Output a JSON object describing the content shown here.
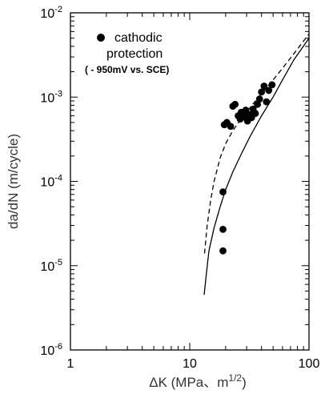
{
  "chart_data": {
    "type": "scatter",
    "title": "",
    "xlabel": "ΔK (MPa、m^1/2)",
    "ylabel": "da/dN (m/cycle)",
    "xscale": "log",
    "yscale": "log",
    "xlim": [
      1,
      100
    ],
    "ylim": [
      1e-06,
      0.01
    ],
    "grid": false,
    "legend_position": "top-left",
    "x_ticks": [
      {
        "value": 1,
        "label": "1"
      },
      {
        "value": 10,
        "label": "10"
      },
      {
        "value": 100,
        "label": "100"
      }
    ],
    "y_ticks": [
      {
        "value": 1e-06,
        "mantissa": "10",
        "exp": "-6"
      },
      {
        "value": 1e-05,
        "mantissa": "10",
        "exp": "-5"
      },
      {
        "value": 0.0001,
        "mantissa": "10",
        "exp": "-4"
      },
      {
        "value": 0.001,
        "mantissa": "10",
        "exp": "-3"
      },
      {
        "value": 0.01,
        "mantissa": "10",
        "exp": "-2"
      }
    ],
    "xlabel_parts": {
      "main": "ΔK (MPa、m",
      "sup": "1/2",
      "close": ")"
    },
    "legend": {
      "marker": "filled-circle",
      "line1": "cathodic",
      "line2": "protection",
      "line3": "( - 950mV vs. SCE)"
    },
    "scatter": {
      "name": "cathodic protection",
      "color": "#000000",
      "points": [
        [
          19.0,
          1.5e-05
        ],
        [
          19.0,
          2.7e-05
        ],
        [
          19.0,
          7.5e-05
        ],
        [
          19.5,
          0.00047
        ],
        [
          20.5,
          0.0005
        ],
        [
          22.0,
          0.00045
        ],
        [
          23.0,
          0.00078
        ],
        [
          24.0,
          0.00082
        ],
        [
          25.5,
          0.0006
        ],
        [
          26.5,
          0.00055
        ],
        [
          27.0,
          0.00066
        ],
        [
          28.5,
          0.00058
        ],
        [
          29.5,
          0.0007
        ],
        [
          30.5,
          0.00052
        ],
        [
          31.5,
          0.00062
        ],
        [
          33.0,
          0.00057
        ],
        [
          34.0,
          0.00072
        ],
        [
          35.5,
          0.00064
        ],
        [
          37.0,
          0.00082
        ],
        [
          38.5,
          0.00095
        ],
        [
          40.0,
          0.00115
        ],
        [
          42.0,
          0.00135
        ],
        [
          44.0,
          0.00088
        ],
        [
          46.0,
          0.0012
        ],
        [
          49.0,
          0.0014
        ]
      ]
    },
    "curves": [
      {
        "style": "solid",
        "color": "#000000",
        "points": [
          [
            13.2,
            4.5e-06
          ],
          [
            13.8,
            8e-06
          ],
          [
            14.5,
            1.5e-05
          ],
          [
            16,
            2.8e-05
          ],
          [
            18,
            5e-05
          ],
          [
            20,
            8e-05
          ],
          [
            23,
            0.00013
          ],
          [
            27,
            0.00021
          ],
          [
            32,
            0.00034
          ],
          [
            40,
            0.0006
          ],
          [
            50,
            0.001
          ],
          [
            60,
            0.0016
          ],
          [
            75,
            0.0028
          ],
          [
            100,
            0.005
          ]
        ]
      },
      {
        "style": "dashed",
        "color": "#000000",
        "points": [
          [
            13.3,
            1.4e-05
          ],
          [
            14,
            3e-05
          ],
          [
            15,
            6e-05
          ],
          [
            16,
            0.0001
          ],
          [
            18,
            0.00019
          ],
          [
            20,
            0.00028
          ],
          [
            23,
            0.0004
          ],
          [
            27,
            0.00055
          ],
          [
            32,
            0.00075
          ],
          [
            40,
            0.0011
          ],
          [
            50,
            0.0016
          ],
          [
            60,
            0.0022
          ],
          [
            75,
            0.0033
          ],
          [
            100,
            0.0056
          ]
        ]
      }
    ]
  }
}
